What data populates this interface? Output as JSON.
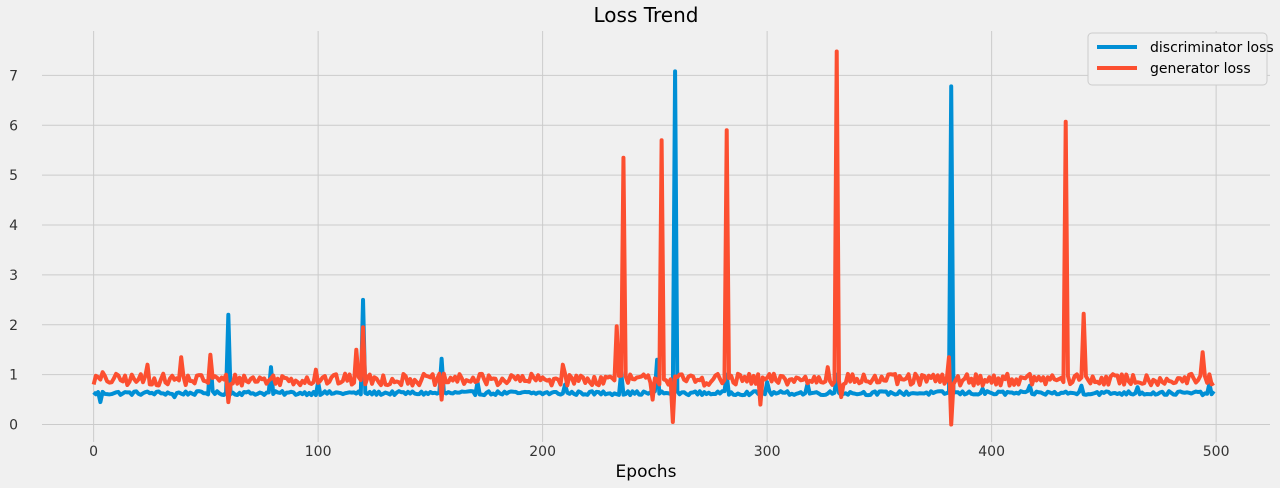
{
  "chart_data": {
    "type": "line",
    "title": "Loss Trend",
    "xlabel": "Epochs",
    "ylabel": "",
    "xlim": [
      -23,
      524
    ],
    "ylim": [
      -0.35,
      7.85
    ],
    "x_ticks": [
      0,
      100,
      200,
      300,
      400,
      500
    ],
    "y_ticks": [
      0,
      1,
      2,
      3,
      4,
      5,
      6,
      7
    ],
    "grid": true,
    "legend_position": "top-right",
    "series": [
      {
        "name": "discriminator loss",
        "color": "#008fd5",
        "baseline": 0.63,
        "noise": 0.04,
        "spikes": [
          [
            3,
            0.45
          ],
          [
            36,
            0.55
          ],
          [
            52,
            1.35
          ],
          [
            60,
            2.2
          ],
          [
            79,
            1.15
          ],
          [
            100,
            0.85
          ],
          [
            120,
            2.5
          ],
          [
            155,
            1.32
          ],
          [
            171,
            0.85
          ],
          [
            210,
            0.8
          ],
          [
            235,
            1.05
          ],
          [
            251,
            1.3
          ],
          [
            259,
            7.08
          ],
          [
            282,
            1.0
          ],
          [
            300,
            0.85
          ],
          [
            318,
            0.82
          ],
          [
            331,
            1.0
          ],
          [
            382,
            6.78
          ],
          [
            396,
            0.72
          ],
          [
            417,
            0.78
          ],
          [
            440,
            0.78
          ],
          [
            465,
            0.75
          ],
          [
            497,
            0.82
          ]
        ]
      },
      {
        "name": "generator loss",
        "color": "#fc4f30",
        "baseline": 0.9,
        "noise": 0.12,
        "spikes": [
          [
            4,
            1.05
          ],
          [
            24,
            1.2
          ],
          [
            39,
            1.35
          ],
          [
            52,
            1.4
          ],
          [
            60,
            0.45
          ],
          [
            99,
            1.1
          ],
          [
            117,
            1.5
          ],
          [
            120,
            1.95
          ],
          [
            155,
            0.5
          ],
          [
            209,
            1.2
          ],
          [
            233,
            1.97
          ],
          [
            236,
            5.35
          ],
          [
            249,
            0.5
          ],
          [
            253,
            5.7
          ],
          [
            258,
            0.05
          ],
          [
            282,
            5.9
          ],
          [
            297,
            0.4
          ],
          [
            327,
            1.15
          ],
          [
            331,
            7.48
          ],
          [
            333,
            0.55
          ],
          [
            381,
            1.35
          ],
          [
            382,
            0.0
          ],
          [
            433,
            6.07
          ],
          [
            441,
            2.22
          ],
          [
            494,
            1.45
          ]
        ]
      }
    ]
  }
}
